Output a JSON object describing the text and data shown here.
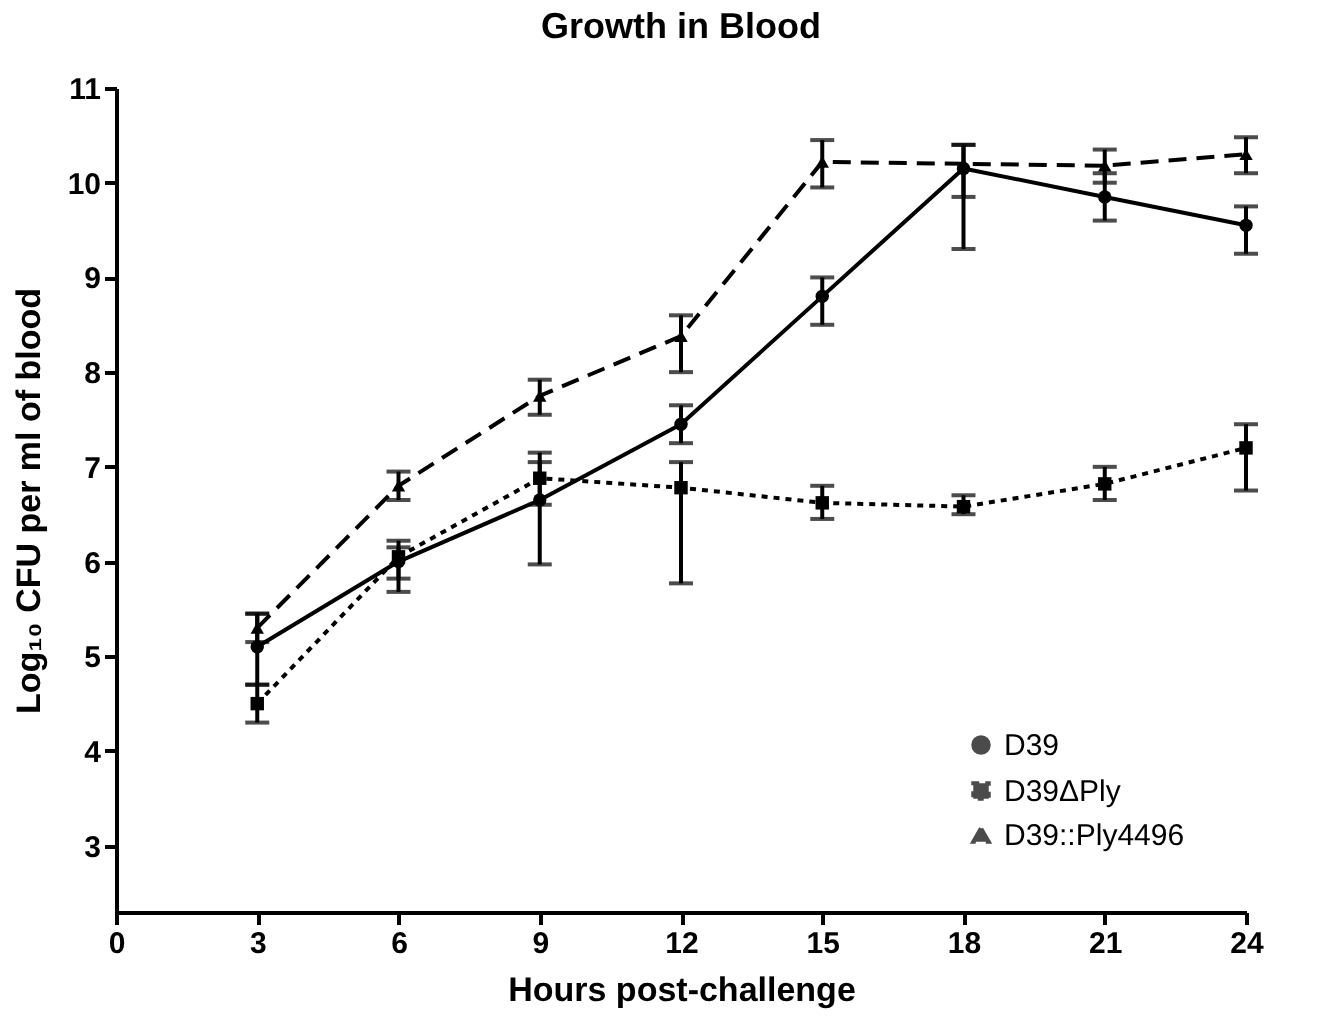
{
  "chart_data": {
    "type": "line",
    "title": "Growth in Blood",
    "xlabel": "Hours post-challenge",
    "ylabel": "Log₁₀ CFU per ml of blood",
    "x": [
      3,
      6,
      9,
      12,
      15,
      18,
      21,
      24
    ],
    "series": [
      {
        "name": "D39",
        "color": "#000000",
        "marker": "circle",
        "line_style": "solid",
        "values": [
          5.1,
          6.0,
          6.65,
          7.45,
          8.8,
          10.15,
          9.85,
          9.55
        ],
        "errors": [
          [
            4.7,
            5.45
          ],
          [
            5.82,
            6.15
          ],
          [
            5.97,
            7.05
          ],
          [
            7.25,
            7.65
          ],
          [
            8.5,
            9.0
          ],
          [
            9.3,
            10.4
          ],
          [
            9.6,
            10.1
          ],
          [
            9.25,
            9.75
          ]
        ]
      },
      {
        "name": "D39ΔPly",
        "color": "#000000",
        "marker": "square",
        "line_style": "dotted",
        "values": [
          4.5,
          6.05,
          6.88,
          6.78,
          6.62,
          6.58,
          6.82,
          7.2
        ],
        "errors": [
          [
            4.3,
            4.7
          ],
          [
            5.68,
            6.22
          ],
          [
            6.6,
            7.15
          ],
          [
            5.77,
            7.05
          ],
          [
            6.45,
            6.8
          ],
          [
            6.5,
            6.7
          ],
          [
            6.65,
            7.0
          ],
          [
            6.75,
            7.45
          ]
        ]
      },
      {
        "name": "D39::Ply4496",
        "color": "#000000",
        "marker": "triangle",
        "line_style": "dashed",
        "values": [
          5.3,
          6.8,
          7.75,
          8.38,
          10.22,
          10.2,
          10.18,
          10.3
        ],
        "errors": [
          [
            5.15,
            5.45
          ],
          [
            6.65,
            6.95
          ],
          [
            7.55,
            7.92
          ],
          [
            8.0,
            8.6
          ],
          [
            9.95,
            10.45
          ],
          [
            9.85,
            10.4
          ],
          [
            10.0,
            10.35
          ],
          [
            10.1,
            10.48
          ]
        ]
      }
    ],
    "xlim": [
      0,
      24
    ],
    "xticks": [
      0,
      3,
      6,
      9,
      12,
      15,
      18,
      21,
      24
    ],
    "ylim": [
      2.3,
      11
    ],
    "yticks": [
      3,
      4,
      5,
      6,
      7,
      8,
      9,
      10,
      11
    ],
    "grid": false,
    "legend": "bottom right"
  }
}
